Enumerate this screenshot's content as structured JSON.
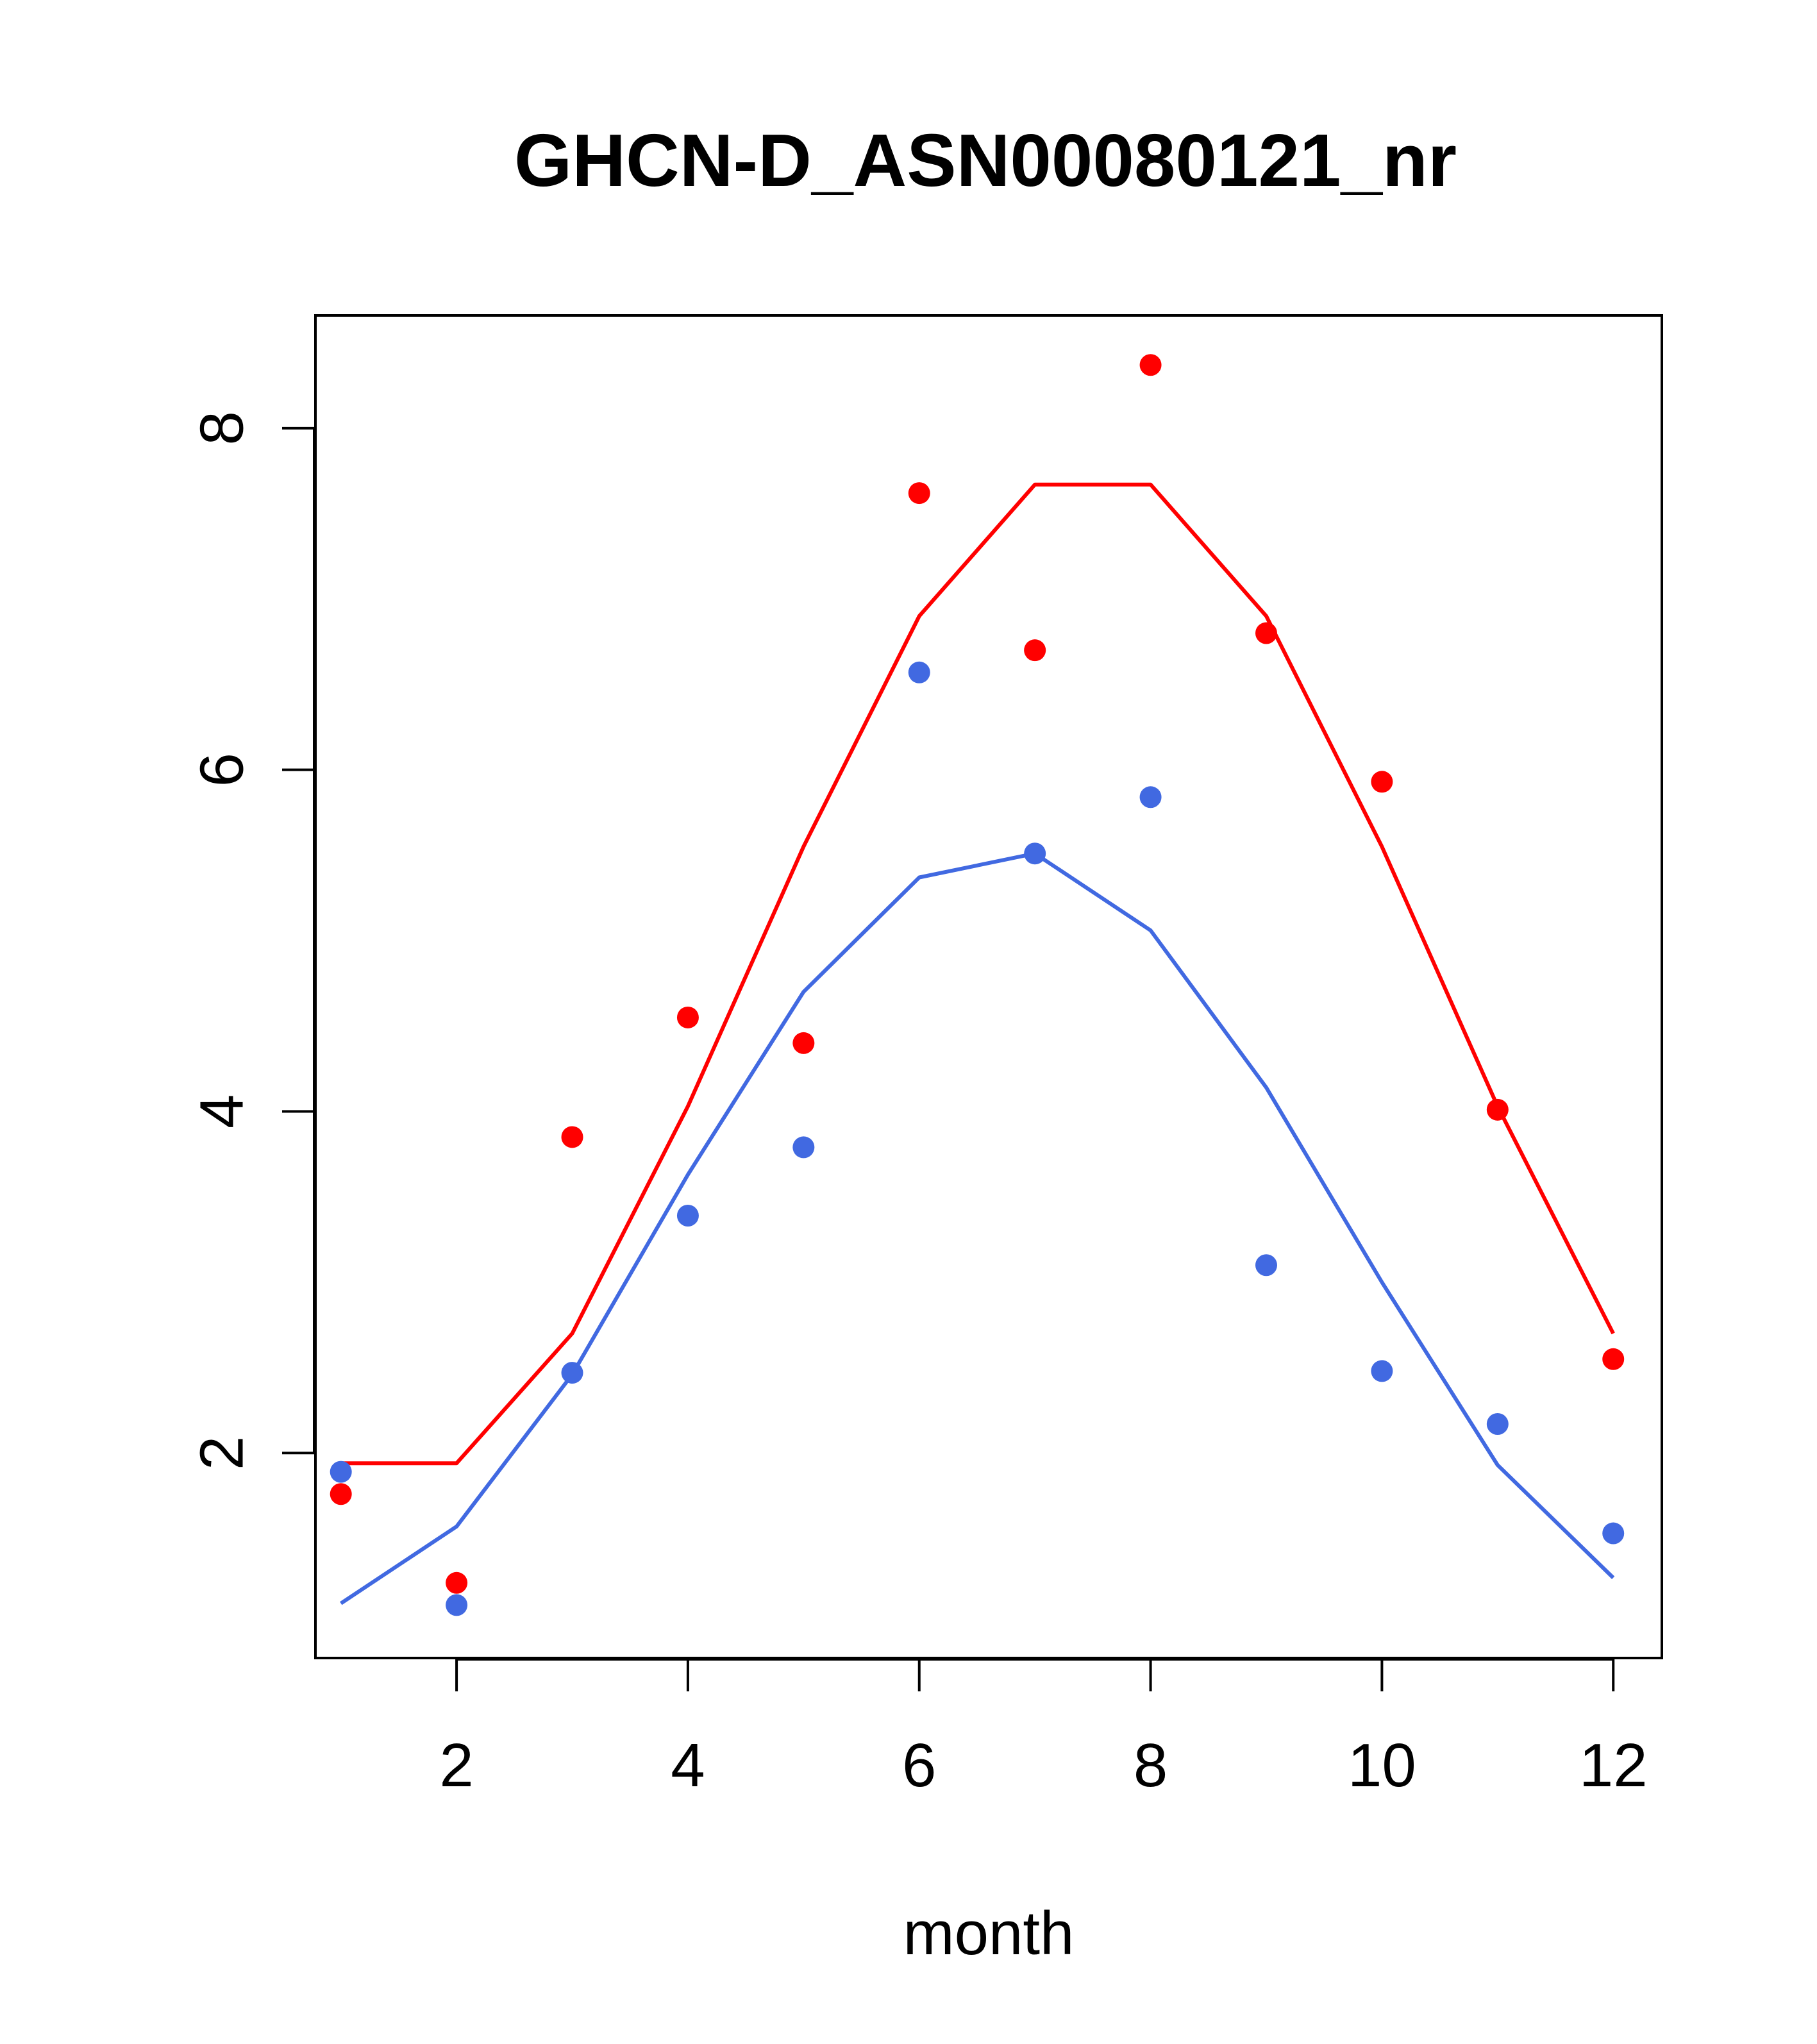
{
  "chart_data": {
    "type": "line",
    "title": "GHCN-D_ASN00080121_nr",
    "xlabel": "month",
    "ylabel": "",
    "xlim": [
      0.78,
      12.42
    ],
    "ylim": [
      0.8,
      8.66
    ],
    "x_ticks": [
      2,
      4,
      6,
      8,
      10,
      12
    ],
    "y_ticks": [
      2,
      4,
      6,
      8
    ],
    "grid": false,
    "legend": "none",
    "series": [
      {
        "color": "#ff0000",
        "x": [
          1,
          2,
          3,
          4,
          5,
          6,
          7,
          8,
          9,
          10,
          11,
          12
        ],
        "line": [
          1.94,
          1.94,
          2.7,
          4.03,
          5.55,
          6.9,
          7.67,
          7.67,
          6.9,
          5.55,
          4.03,
          2.7
        ],
        "points": [
          1.76,
          1.24,
          3.85,
          4.55,
          4.4,
          7.62,
          6.7,
          8.37,
          6.8,
          5.93,
          4.01,
          2.55
        ]
      },
      {
        "color": "#4169e1",
        "x": [
          1,
          2,
          3,
          4,
          5,
          6,
          7,
          8,
          9,
          10,
          11,
          12
        ],
        "line": [
          1.12,
          1.57,
          2.46,
          3.63,
          4.7,
          5.37,
          5.51,
          5.06,
          4.14,
          3.0,
          1.93,
          1.27
        ],
        "points": [
          1.89,
          1.11,
          2.47,
          3.39,
          3.79,
          6.57,
          5.51,
          5.84,
          3.1,
          2.48,
          2.17,
          1.53
        ]
      }
    ]
  }
}
